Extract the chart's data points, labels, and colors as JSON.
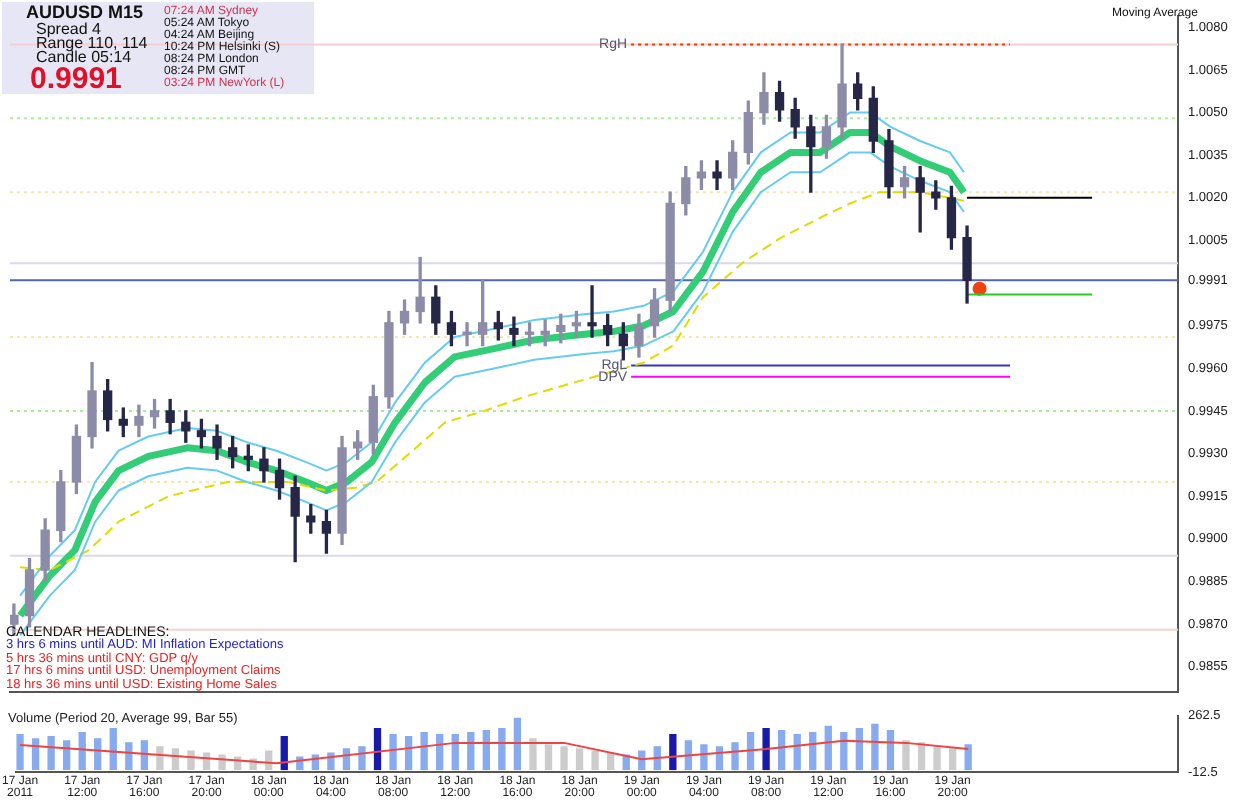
{
  "chart_data": [
    {
      "type": "candlestick",
      "x": [
        "2011-01-17T08:00",
        "2011-01-17T09:00",
        "2011-01-17T10:00",
        "2011-01-17T11:00",
        "2011-01-17T12:00",
        "2011-01-17T13:00",
        "2011-01-17T14:00",
        "2011-01-17T15:00",
        "2011-01-17T16:00",
        "2011-01-17T17:00",
        "2011-01-17T18:00",
        "2011-01-17T19:00",
        "2011-01-17T20:00",
        "2011-01-17T21:00",
        "2011-01-17T22:00",
        "2011-01-17T23:00",
        "2011-01-18T00:00",
        "2011-01-18T01:00",
        "2011-01-18T02:00",
        "2011-01-18T03:00",
        "2011-01-18T04:00",
        "2011-01-18T05:00",
        "2011-01-18T06:00",
        "2011-01-18T07:00",
        "2011-01-18T08:00",
        "2011-01-18T09:00",
        "2011-01-18T10:00",
        "2011-01-18T11:00",
        "2011-01-18T12:00",
        "2011-01-18T13:00",
        "2011-01-18T14:00",
        "2011-01-18T15:00",
        "2011-01-18T16:00",
        "2011-01-18T17:00",
        "2011-01-18T18:00",
        "2011-01-18T19:00",
        "2011-01-18T20:00",
        "2011-01-18T21:00",
        "2011-01-18T22:00",
        "2011-01-18T23:00",
        "2011-01-19T00:00",
        "2011-01-19T01:00",
        "2011-01-19T02:00",
        "2011-01-19T03:00",
        "2011-01-19T04:00",
        "2011-01-19T05:00",
        "2011-01-19T06:00",
        "2011-01-19T07:00",
        "2011-01-19T08:00",
        "2011-01-19T09:00",
        "2011-01-19T10:00",
        "2011-01-19T11:00",
        "2011-01-19T12:00",
        "2011-01-19T13:00",
        "2011-01-19T14:00",
        "2011-01-19T15:00",
        "2011-01-19T16:00",
        "2011-01-19T17:00",
        "2011-01-19T18:00",
        "2011-01-19T19:00",
        "2011-01-19T20:00",
        "2011-01-19T21:00"
      ],
      "ohlc": [
        [
          0.987,
          0.9877,
          0.9866,
          0.9873
        ],
        [
          0.9873,
          0.9893,
          0.9869,
          0.9889
        ],
        [
          0.9889,
          0.9907,
          0.9885,
          0.9903
        ],
        [
          0.9903,
          0.9924,
          0.9899,
          0.992
        ],
        [
          0.992,
          0.994,
          0.9916,
          0.9936
        ],
        [
          0.9936,
          0.9962,
          0.9932,
          0.9952
        ],
        [
          0.9952,
          0.9956,
          0.9938,
          0.9942
        ],
        [
          0.9942,
          0.9946,
          0.9936,
          0.994
        ],
        [
          0.994,
          0.9947,
          0.9936,
          0.9943
        ],
        [
          0.9943,
          0.9949,
          0.9939,
          0.9945
        ],
        [
          0.9945,
          0.9949,
          0.9937,
          0.9941
        ],
        [
          0.9941,
          0.9945,
          0.9934,
          0.9938
        ],
        [
          0.9938,
          0.9942,
          0.9932,
          0.9936
        ],
        [
          0.9936,
          0.994,
          0.9928,
          0.9932
        ],
        [
          0.9932,
          0.9936,
          0.9925,
          0.9929
        ],
        [
          0.9929,
          0.9933,
          0.9924,
          0.9928
        ],
        [
          0.9928,
          0.9932,
          0.992,
          0.9924
        ],
        [
          0.9924,
          0.9928,
          0.9914,
          0.9918
        ],
        [
          0.9918,
          0.9922,
          0.9892,
          0.9908
        ],
        [
          0.9908,
          0.9912,
          0.9902,
          0.9906
        ],
        [
          0.9906,
          0.991,
          0.9895,
          0.9902
        ],
        [
          0.9902,
          0.9936,
          0.9898,
          0.9932
        ],
        [
          0.9932,
          0.9938,
          0.9928,
          0.9934
        ],
        [
          0.9934,
          0.9954,
          0.993,
          0.995
        ],
        [
          0.995,
          0.998,
          0.9946,
          0.9976
        ],
        [
          0.9976,
          0.9984,
          0.9972,
          0.998
        ],
        [
          0.998,
          0.9999,
          0.9976,
          0.9985
        ],
        [
          0.9985,
          0.9989,
          0.9972,
          0.9976
        ],
        [
          0.9976,
          0.998,
          0.9968,
          0.9972
        ],
        [
          0.9972,
          0.9976,
          0.9968,
          0.9972
        ],
        [
          0.9972,
          0.9991,
          0.9968,
          0.9976
        ],
        [
          0.9976,
          0.998,
          0.997,
          0.9974
        ],
        [
          0.9974,
          0.9978,
          0.9968,
          0.9972
        ],
        [
          0.9972,
          0.9976,
          0.9968,
          0.9972
        ],
        [
          0.9972,
          0.9977,
          0.9968,
          0.9973
        ],
        [
          0.9973,
          0.9979,
          0.9969,
          0.9975
        ],
        [
          0.9975,
          0.998,
          0.9971,
          0.9976
        ],
        [
          0.9976,
          0.9989,
          0.9971,
          0.9975
        ],
        [
          0.9975,
          0.9979,
          0.9968,
          0.9972
        ],
        [
          0.9972,
          0.9976,
          0.9963,
          0.9968
        ],
        [
          0.9968,
          0.9979,
          0.9964,
          0.9975
        ],
        [
          0.9975,
          0.9988,
          0.9971,
          0.9984
        ],
        [
          0.9984,
          1.0022,
          0.998,
          1.0018
        ],
        [
          1.0018,
          1.0031,
          1.0014,
          1.0027
        ],
        [
          1.0027,
          1.0033,
          1.0023,
          1.0029
        ],
        [
          1.0029,
          1.0033,
          1.0023,
          1.0027
        ],
        [
          1.0027,
          1.004,
          1.0023,
          1.0036
        ],
        [
          1.0036,
          1.0054,
          1.0032,
          1.005
        ],
        [
          1.005,
          1.0064,
          1.0046,
          1.0057
        ],
        [
          1.0057,
          1.0061,
          1.0047,
          1.0051
        ],
        [
          1.0051,
          1.0055,
          1.0041,
          1.0045
        ],
        [
          1.0045,
          1.0049,
          1.0022,
          1.0038
        ],
        [
          1.0038,
          1.0049,
          1.0034,
          1.0045
        ],
        [
          1.0045,
          1.0074,
          1.0041,
          1.006
        ],
        [
          1.006,
          1.0064,
          1.0051,
          1.0055
        ],
        [
          1.0055,
          1.0059,
          1.0036,
          1.004
        ],
        [
          1.004,
          1.0044,
          1.002,
          1.0024
        ],
        [
          1.0024,
          1.0031,
          1.002,
          1.0027
        ],
        [
          1.0027,
          1.0031,
          1.0008,
          1.0022
        ],
        [
          1.0022,
          1.0026,
          1.0016,
          1.002
        ],
        [
          1.002,
          1.0024,
          1.0002,
          1.0006
        ],
        [
          1.0006,
          1.001,
          0.9983,
          0.9991
        ]
      ],
      "series": [
        {
          "type": "line",
          "color": "#66ccee",
          "x": [
            "2011-01-17T08:24",
            "2011-01-17T10:18",
            "2011-01-17T11:54",
            "2011-01-17T13:12",
            "2011-01-17T14:42",
            "2011-01-17T16:36",
            "2011-01-17T19:06",
            "2011-01-17T21:00",
            "2011-01-17T22:54",
            "2011-01-18T00:48",
            "2011-01-18T02:42",
            "2011-01-18T04:00",
            "2011-01-18T05:18",
            "2011-01-18T06:54",
            "2011-01-18T08:24",
            "2011-01-18T10:18",
            "2011-01-18T12:12",
            "2011-01-18T14:48",
            "2011-01-18T17:18",
            "2011-01-18T20:30",
            "2011-01-18T22:24",
            "2011-01-19T00:18",
            "2011-01-19T02:12",
            "2011-01-19T04:06",
            "2011-01-19T06:00",
            "2011-01-19T07:48",
            "2011-01-19T09:42",
            "2011-01-19T11:36",
            "2011-01-19T13:30",
            "2011-01-19T14:48",
            "2011-01-19T16:06",
            "2011-01-19T18:00",
            "2011-01-19T19:54",
            "2011-01-19T20:48"
          ],
          "values": [
            0.988,
            0.9894,
            0.9903,
            0.992,
            0.9931,
            0.9936,
            0.9939,
            0.9938,
            0.9934,
            0.9931,
            0.9927,
            0.9924,
            0.9927,
            0.9934,
            0.9948,
            0.9962,
            0.9971,
            0.9974,
            0.9977,
            0.9979,
            0.998,
            0.9982,
            0.9987,
            1.0001,
            1.0022,
            1.0036,
            1.0043,
            1.0043,
            1.005,
            1.005,
            1.0045,
            1.004,
            1.0036,
            1.0029
          ]
        },
        {
          "type": "line",
          "color": "#66ccee",
          "x": [
            "2011-01-17T08:24",
            "2011-01-17T10:18",
            "2011-01-17T11:54",
            "2011-01-17T13:12",
            "2011-01-17T14:42",
            "2011-01-17T16:36",
            "2011-01-17T19:06",
            "2011-01-17T21:00",
            "2011-01-17T22:54",
            "2011-01-18T00:48",
            "2011-01-18T02:42",
            "2011-01-18T04:00",
            "2011-01-18T05:18",
            "2011-01-18T06:54",
            "2011-01-18T08:24",
            "2011-01-18T10:18",
            "2011-01-18T12:12",
            "2011-01-18T14:48",
            "2011-01-18T17:18",
            "2011-01-18T20:30",
            "2011-01-18T22:24",
            "2011-01-19T00:18",
            "2011-01-19T02:12",
            "2011-01-19T04:06",
            "2011-01-19T06:00",
            "2011-01-19T07:48",
            "2011-01-19T09:42",
            "2011-01-19T11:36",
            "2011-01-19T13:30",
            "2011-01-19T14:48",
            "2011-01-19T16:06",
            "2011-01-19T18:00",
            "2011-01-19T19:54",
            "2011-01-19T20:48"
          ],
          "values": [
            0.9866,
            0.988,
            0.9889,
            0.9906,
            0.9917,
            0.9922,
            0.9925,
            0.9924,
            0.992,
            0.9917,
            0.9913,
            0.991,
            0.9913,
            0.992,
            0.9934,
            0.9948,
            0.9957,
            0.996,
            0.9963,
            0.9965,
            0.9966,
            0.9968,
            0.9973,
            0.9987,
            1.0008,
            1.0022,
            1.0029,
            1.0029,
            1.0036,
            1.0036,
            1.0031,
            1.0026,
            1.0022,
            1.0015
          ]
        },
        {
          "type": "line",
          "color": "#dddd00",
          "line_style": "dashed",
          "x": [
            "2011-01-17T08:24",
            "2011-01-17T10:18",
            "2011-01-17T12:48",
            "2011-01-17T14:42",
            "2011-01-17T17:54",
            "2011-01-17T21:42",
            "2011-01-18T01:30",
            "2011-01-18T04:00",
            "2011-01-18T05:54",
            "2011-01-18T07:12",
            "2011-01-18T09:06",
            "2011-01-18T11:36",
            "2011-01-18T14:06",
            "2011-01-18T16:42",
            "2011-01-18T20:30",
            "2011-01-19T00:18",
            "2011-01-19T02:12",
            "2011-01-19T04:06",
            "2011-01-19T06:36",
            "2011-01-19T09:06",
            "2011-01-19T11:36",
            "2011-01-19T13:30",
            "2011-01-19T15:24",
            "2011-01-19T18:00",
            "2011-01-19T20:48"
          ],
          "values": [
            0.989,
            0.9889,
            0.9896,
            0.9906,
            0.9915,
            0.992,
            0.992,
            0.9917,
            0.9918,
            0.992,
            0.9929,
            0.9941,
            0.9945,
            0.995,
            0.9956,
            0.9962,
            0.9968,
            0.9985,
            0.9997,
            1.0006,
            1.0013,
            1.0018,
            1.0022,
            1.0022,
            1.0019
          ]
        },
        {
          "type": "line",
          "color": "#33cc77",
          "x": [
            "2011-01-17T08:24",
            "2011-01-17T10:18",
            "2011-01-17T11:54",
            "2011-01-17T13:12",
            "2011-01-17T14:42",
            "2011-01-17T16:36",
            "2011-01-17T19:06",
            "2011-01-17T21:00",
            "2011-01-17T22:54",
            "2011-01-18T00:48",
            "2011-01-18T02:42",
            "2011-01-18T04:00",
            "2011-01-18T05:18",
            "2011-01-18T06:54",
            "2011-01-18T08:24",
            "2011-01-18T10:18",
            "2011-01-18T12:12",
            "2011-01-18T14:48",
            "2011-01-18T17:18",
            "2011-01-18T20:30",
            "2011-01-18T22:24",
            "2011-01-19T00:18",
            "2011-01-19T02:12",
            "2011-01-19T04:06",
            "2011-01-19T06:00",
            "2011-01-19T07:48",
            "2011-01-19T09:42",
            "2011-01-19T11:36",
            "2011-01-19T13:30",
            "2011-01-19T14:48",
            "2011-01-19T16:06",
            "2011-01-19T18:00",
            "2011-01-19T19:54",
            "2011-01-19T20:48"
          ],
          "values": [
            0.9873,
            0.9887,
            0.9896,
            0.9913,
            0.9924,
            0.9929,
            0.9932,
            0.9931,
            0.9927,
            0.9924,
            0.992,
            0.9917,
            0.992,
            0.9927,
            0.9941,
            0.9955,
            0.9964,
            0.9967,
            0.997,
            0.9972,
            0.9973,
            0.9975,
            0.998,
            0.9994,
            1.0015,
            1.0029,
            1.0036,
            1.0036,
            1.0043,
            1.0043,
            1.0038,
            1.0033,
            1.0029,
            1.0022
          ]
        },
        {
          "type": "line",
          "name": "RgH",
          "color": "#ff3300",
          "line_style": "dotted",
          "x": [
            "2011-01-18T23:30",
            "2011-01-19T23:45"
          ],
          "values": [
            1.0074,
            1.0074
          ]
        },
        {
          "type": "line",
          "name": "RgL",
          "color": "#3333cc",
          "x": [
            "2011-01-18T23:30",
            "2011-01-19T23:45"
          ],
          "values": [
            0.9961,
            0.9961
          ]
        },
        {
          "type": "line",
          "name": "DPV",
          "color": "#ff00ff",
          "x": [
            "2011-01-18T23:30",
            "2011-01-19T23:45"
          ],
          "values": [
            0.9957,
            0.9957
          ]
        },
        {
          "type": "line",
          "color": "#000000",
          "x": [
            "2011-01-19T21:00",
            "2011-01-20T05:00"
          ],
          "values": [
            1.002,
            1.002
          ]
        },
        {
          "type": "line",
          "color": "#22cc22",
          "x": [
            "2011-01-19T21:00",
            "2011-01-20T05:00"
          ],
          "values": [
            0.9986,
            0.9986
          ]
        },
        {
          "type": "scatter",
          "color": "#ee4411",
          "marker": "circle",
          "x": [
            "2011-01-19T21:48"
          ],
          "values": [
            0.9988
          ]
        }
      ],
      "ref_lines": [
        {
          "axis": "y",
          "value": 1.0074,
          "color": "#f4d0d0"
        },
        {
          "axis": "y",
          "value": 1.0048,
          "color": "#aaee99",
          "line_style": "dotted"
        },
        {
          "axis": "y",
          "value": 1.0022,
          "color": "#f4e8b0",
          "line_style": "dotted"
        },
        {
          "axis": "y",
          "value": 0.9997,
          "color": "#d8d8ee"
        },
        {
          "axis": "y",
          "value": 0.9991,
          "color": "#5566aa"
        },
        {
          "axis": "y",
          "value": 0.9971,
          "color": "#f4e8b0",
          "line_style": "dotted"
        },
        {
          "axis": "y",
          "value": 0.9945,
          "color": "#aaee99",
          "line_style": "dotted"
        },
        {
          "axis": "y",
          "value": 0.992,
          "color": "#f4e8b0",
          "line_style": "dotted"
        },
        {
          "axis": "y",
          "value": 0.9894,
          "color": "#d8d8ee"
        },
        {
          "axis": "y",
          "value": 0.9868,
          "color": "#f4d0d0"
        }
      ],
      "xlim": [
        "2011-01-17T07:45",
        "2011-01-20T10:30"
      ],
      "ylim": [
        0.9846,
        1.0084
      ],
      "yticks": [
        {
          "value": 1.008,
          "label": "1.0080"
        },
        {
          "value": 1.0065,
          "label": "1.0065"
        },
        {
          "value": 1.005,
          "label": "1.0050"
        },
        {
          "value": 1.0035,
          "label": "1.0035"
        },
        {
          "value": 1.002,
          "label": "1.0020"
        },
        {
          "value": 1.0005,
          "label": "1.0005"
        },
        {
          "value": 0.9991,
          "label": "0.9991"
        },
        {
          "value": 0.9975,
          "label": "0.9975"
        },
        {
          "value": 0.996,
          "label": "0.9960"
        },
        {
          "value": 0.9945,
          "label": "0.9945"
        },
        {
          "value": 0.993,
          "label": "0.9930"
        },
        {
          "value": 0.9915,
          "label": "0.9915"
        },
        {
          "value": 0.99,
          "label": "0.9900"
        },
        {
          "value": 0.9885,
          "label": "0.9885"
        },
        {
          "value": 0.987,
          "label": "0.9870"
        },
        {
          "value": 0.9855,
          "label": "0.9855"
        }
      ],
      "tick_labels": "y",
      "annotations": [
        "AUDUSD  M15",
        "Spread  4",
        "Range  110, 114",
        "Candle  05:14",
        "0.9991",
        "07:24 AM   Sydney",
        "05:24 AM   Tokyo",
        "04:24 AM   Beijing",
        "10:24 PM   Helsinki (S)",
        "08:24 PM   London",
        "08:24 PM   GMT",
        "03:24 PM   NewYork (L)",
        "Moving Average",
        "CALENDAR  HEADLINES:",
        "3 hrs 6 mins until AUD: MI Inflation Expectations",
        "5 hrs 36 mins until CNY: GDP q/y",
        "17 hrs 6 mins until USD: Unemployment Claims",
        "18 hrs 36 mins until USD: Existing Home Sales"
      ]
    },
    {
      "type": "bar",
      "title": "Volume  (Period 20, Average 99, Bar 55)",
      "x": [
        "2011-01-17T08:00",
        "2011-01-17T09:00",
        "2011-01-17T10:00",
        "2011-01-17T11:00",
        "2011-01-17T12:00",
        "2011-01-17T13:00",
        "2011-01-17T14:00",
        "2011-01-17T15:00",
        "2011-01-17T16:00",
        "2011-01-17T17:00",
        "2011-01-17T18:00",
        "2011-01-17T19:00",
        "2011-01-17T20:00",
        "2011-01-17T21:00",
        "2011-01-17T22:00",
        "2011-01-17T23:00",
        "2011-01-18T00:00",
        "2011-01-18T01:00",
        "2011-01-18T02:00",
        "2011-01-18T03:00",
        "2011-01-18T04:00",
        "2011-01-18T05:00",
        "2011-01-18T06:00",
        "2011-01-18T07:00",
        "2011-01-18T08:00",
        "2011-01-18T09:00",
        "2011-01-18T10:00",
        "2011-01-18T11:00",
        "2011-01-18T12:00",
        "2011-01-18T13:00",
        "2011-01-18T14:00",
        "2011-01-18T15:00",
        "2011-01-18T16:00",
        "2011-01-18T17:00",
        "2011-01-18T18:00",
        "2011-01-18T19:00",
        "2011-01-18T20:00",
        "2011-01-18T21:00",
        "2011-01-18T22:00",
        "2011-01-18T23:00",
        "2011-01-19T00:00",
        "2011-01-19T01:00",
        "2011-01-19T02:00",
        "2011-01-19T03:00",
        "2011-01-19T04:00",
        "2011-01-19T05:00",
        "2011-01-19T06:00",
        "2011-01-19T07:00",
        "2011-01-19T08:00",
        "2011-01-19T09:00",
        "2011-01-19T10:00",
        "2011-01-19T11:00",
        "2011-01-19T12:00",
        "2011-01-19T13:00",
        "2011-01-19T14:00",
        "2011-01-19T15:00",
        "2011-01-19T16:00",
        "2011-01-19T17:00",
        "2011-01-19T18:00",
        "2011-01-19T19:00",
        "2011-01-19T20:00",
        "2011-01-19T21:00"
      ],
      "values": [
        170,
        150,
        160,
        140,
        180,
        150,
        200,
        130,
        140,
        110,
        100,
        90,
        80,
        70,
        60,
        50,
        90,
        160,
        60,
        70,
        80,
        100,
        110,
        200,
        170,
        160,
        180,
        170,
        170,
        180,
        190,
        200,
        250,
        150,
        120,
        110,
        100,
        90,
        80,
        70,
        90,
        110,
        170,
        140,
        120,
        110,
        130,
        180,
        200,
        190,
        170,
        180,
        210,
        180,
        200,
        220,
        190,
        140,
        130,
        110,
        100,
        120
      ],
      "colors": [
        "#88aaee",
        "#88aaee",
        "#88aaee",
        "#88aaee",
        "#88aaee",
        "#88aaee",
        "#88aaee",
        "#88aaee",
        "#88aaee",
        "#cccccc",
        "#cccccc",
        "#cccccc",
        "#cccccc",
        "#cccccc",
        "#cccccc",
        "#cccccc",
        "#cccccc",
        "#1a1aaa",
        "#88aaee",
        "#88aaee",
        "#88aaee",
        "#88aaee",
        "#88aaee",
        "#1a1aaa",
        "#88aaee",
        "#88aaee",
        "#88aaee",
        "#88aaee",
        "#88aaee",
        "#88aaee",
        "#88aaee",
        "#88aaee",
        "#88aaee",
        "#cccccc",
        "#cccccc",
        "#cccccc",
        "#cccccc",
        "#cccccc",
        "#cccccc",
        "#88aaee",
        "#88aaee",
        "#88aaee",
        "#1a1aaa",
        "#88aaee",
        "#88aaee",
        "#88aaee",
        "#88aaee",
        "#88aaee",
        "#1a1aaa",
        "#88aaee",
        "#88aaee",
        "#88aaee",
        "#88aaee",
        "#88aaee",
        "#88aaee",
        "#88aaee",
        "#88aaee",
        "#cccccc",
        "#cccccc",
        "#cccccc",
        "#cccccc",
        "#88aaee"
      ],
      "series": [
        {
          "type": "line",
          "color": "#ee4444",
          "x": [
            "2011-01-17T08:00",
            "2011-01-18T00:30",
            "2011-01-18T12:00",
            "2011-01-18T19:00",
            "2011-01-19T00:00",
            "2011-01-19T08:00",
            "2011-01-19T13:00",
            "2011-01-19T17:00",
            "2011-01-19T21:00"
          ],
          "values": [
            120,
            30,
            130,
            130,
            50,
            100,
            140,
            130,
            100
          ]
        }
      ],
      "xlim": [
        "2011-01-17T07:45",
        "2011-01-20T10:30"
      ],
      "xticks": [
        {
          "value": "2011-01-17T08:00",
          "label": "17 Jan 2011"
        },
        {
          "value": "2011-01-17T12:00",
          "label": "17 Jan 12:00"
        },
        {
          "value": "2011-01-17T16:00",
          "label": "17 Jan 16:00"
        },
        {
          "value": "2011-01-17T20:00",
          "label": "17 Jan 20:00"
        },
        {
          "value": "2011-01-18T00:00",
          "label": "18 Jan 00:00"
        },
        {
          "value": "2011-01-18T04:00",
          "label": "18 Jan 04:00"
        },
        {
          "value": "2011-01-18T08:00",
          "label": "18 Jan 08:00"
        },
        {
          "value": "2011-01-18T12:00",
          "label": "18 Jan 12:00"
        },
        {
          "value": "2011-01-18T16:00",
          "label": "18 Jan 16:00"
        },
        {
          "value": "2011-01-18T20:00",
          "label": "18 Jan 20:00"
        },
        {
          "value": "2011-01-19T00:00",
          "label": "19 Jan 00:00"
        },
        {
          "value": "2011-01-19T04:00",
          "label": "19 Jan 04:00"
        },
        {
          "value": "2011-01-19T08:00",
          "label": "19 Jan 08:00"
        },
        {
          "value": "2011-01-19T12:00",
          "label": "19 Jan 12:00"
        },
        {
          "value": "2011-01-19T16:00",
          "label": "19 Jan 16:00"
        },
        {
          "value": "2011-01-19T20:00",
          "label": "19 Jan 20:00"
        }
      ],
      "ylim": [
        -12.5,
        262.5
      ],
      "yticks": [
        262.5,
        -12.5
      ]
    }
  ]
}
